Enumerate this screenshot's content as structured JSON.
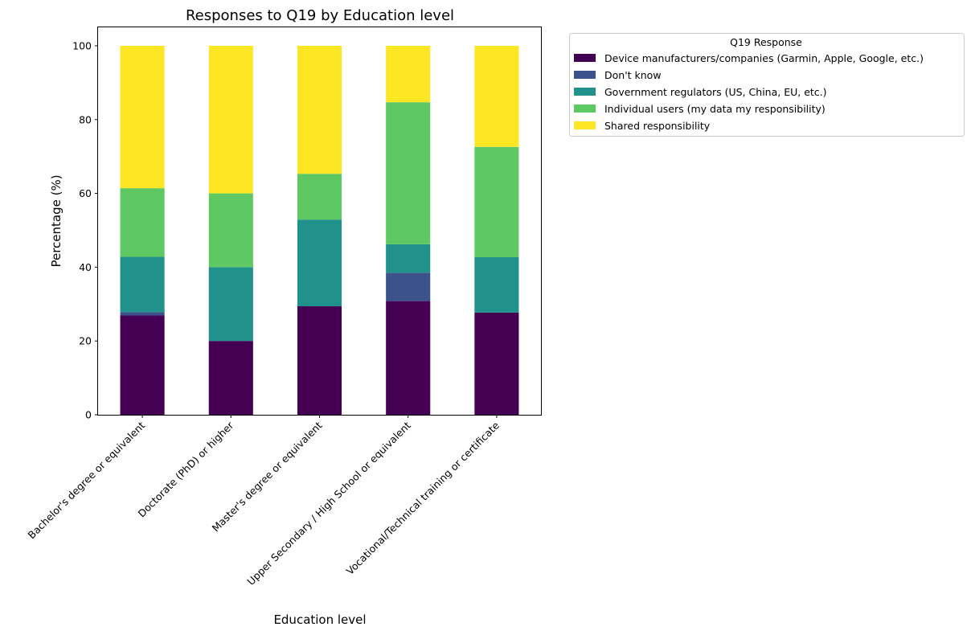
{
  "chart_data": {
    "type": "bar",
    "stacked": true,
    "title": "Responses to Q19 by Education level",
    "xlabel": "Education level",
    "ylabel": "Percentage (%)",
    "ylim": [
      0,
      105
    ],
    "yticks": [
      0,
      20,
      40,
      60,
      80,
      100
    ],
    "grid": false,
    "legend_title": "Q19 Response",
    "legend_position": "outside-upper-right",
    "categories": [
      "Bachelor's degree or equivalent",
      "Doctorate (PhD) or higher",
      "Master's degree or equivalent",
      "Upper Secondary / High School or equivalent",
      "Vocational/Technical training or certificate"
    ],
    "series": [
      {
        "name": "Device manufacturers/companies (Garmin, Apple, Google, etc.)",
        "color": "#440154",
        "values": [
          26.9,
          20.0,
          29.4,
          30.8,
          27.7
        ]
      },
      {
        "name": "Don't know",
        "color": "#3b528b",
        "values": [
          0.9,
          0.0,
          0.0,
          7.7,
          0.0
        ]
      },
      {
        "name": "Government regulators (US, China, EU, etc.)",
        "color": "#21918c",
        "values": [
          15.0,
          20.0,
          23.5,
          7.7,
          15.0
        ]
      },
      {
        "name": "Individual users (my data my responsibility)",
        "color": "#5ec962",
        "values": [
          18.6,
          20.0,
          12.4,
          38.5,
          29.9
        ]
      },
      {
        "name": "Shared responsibility",
        "color": "#fde725",
        "values": [
          38.6,
          40.0,
          34.7,
          15.3,
          27.4
        ]
      }
    ]
  }
}
